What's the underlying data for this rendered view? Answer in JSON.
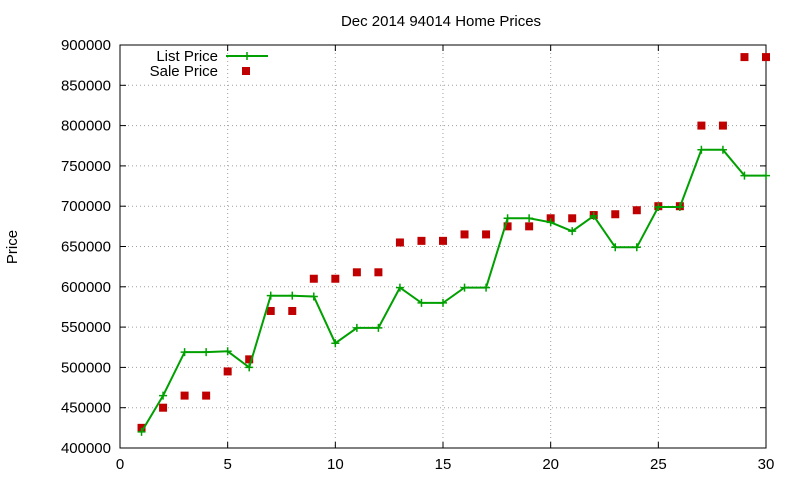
{
  "chart_data": {
    "type": "line",
    "title": "Dec 2014 94014 Home Prices",
    "xlabel": "",
    "ylabel": "Price",
    "xlim": [
      0,
      30
    ],
    "ylim": [
      400000,
      900000
    ],
    "xticks": [
      0,
      5,
      10,
      15,
      20,
      25,
      30
    ],
    "yticks": [
      400000,
      450000,
      500000,
      550000,
      600000,
      650000,
      700000,
      750000,
      800000,
      850000,
      900000
    ],
    "grid": true,
    "legend_position": "top-left",
    "series": [
      {
        "name": "List Price",
        "style": "line-with-plus-markers",
        "color": "#00a000",
        "x": [
          1,
          2,
          3,
          4,
          5,
          6,
          7,
          8,
          9,
          10,
          11,
          12,
          13,
          14,
          15,
          16,
          17,
          18,
          19,
          20,
          21,
          22,
          23,
          24,
          25,
          26,
          27,
          28,
          29,
          30
        ],
        "y": [
          420000,
          465000,
          519000,
          519000,
          520000,
          500000,
          589000,
          589000,
          588000,
          530000,
          549000,
          549000,
          599000,
          580000,
          580000,
          599000,
          599000,
          685000,
          685000,
          680000,
          669000,
          688000,
          649000,
          649000,
          699000,
          699000,
          770000,
          770000,
          738000,
          738000
        ]
      },
      {
        "name": "Sale Price",
        "style": "square-markers",
        "color": "#c00000",
        "x": [
          1,
          2,
          3,
          4,
          5,
          6,
          7,
          8,
          9,
          10,
          11,
          12,
          13,
          14,
          15,
          16,
          17,
          18,
          19,
          20,
          21,
          22,
          23,
          24,
          25,
          26,
          27,
          28,
          29,
          30
        ],
        "y": [
          425000,
          450000,
          465000,
          465000,
          495000,
          510000,
          570000,
          570000,
          610000,
          610000,
          618000,
          618000,
          655000,
          657000,
          657000,
          665000,
          665000,
          675000,
          675000,
          685000,
          685000,
          689000,
          690000,
          695000,
          700000,
          700000,
          800000,
          800000,
          885000,
          885000
        ]
      }
    ]
  }
}
